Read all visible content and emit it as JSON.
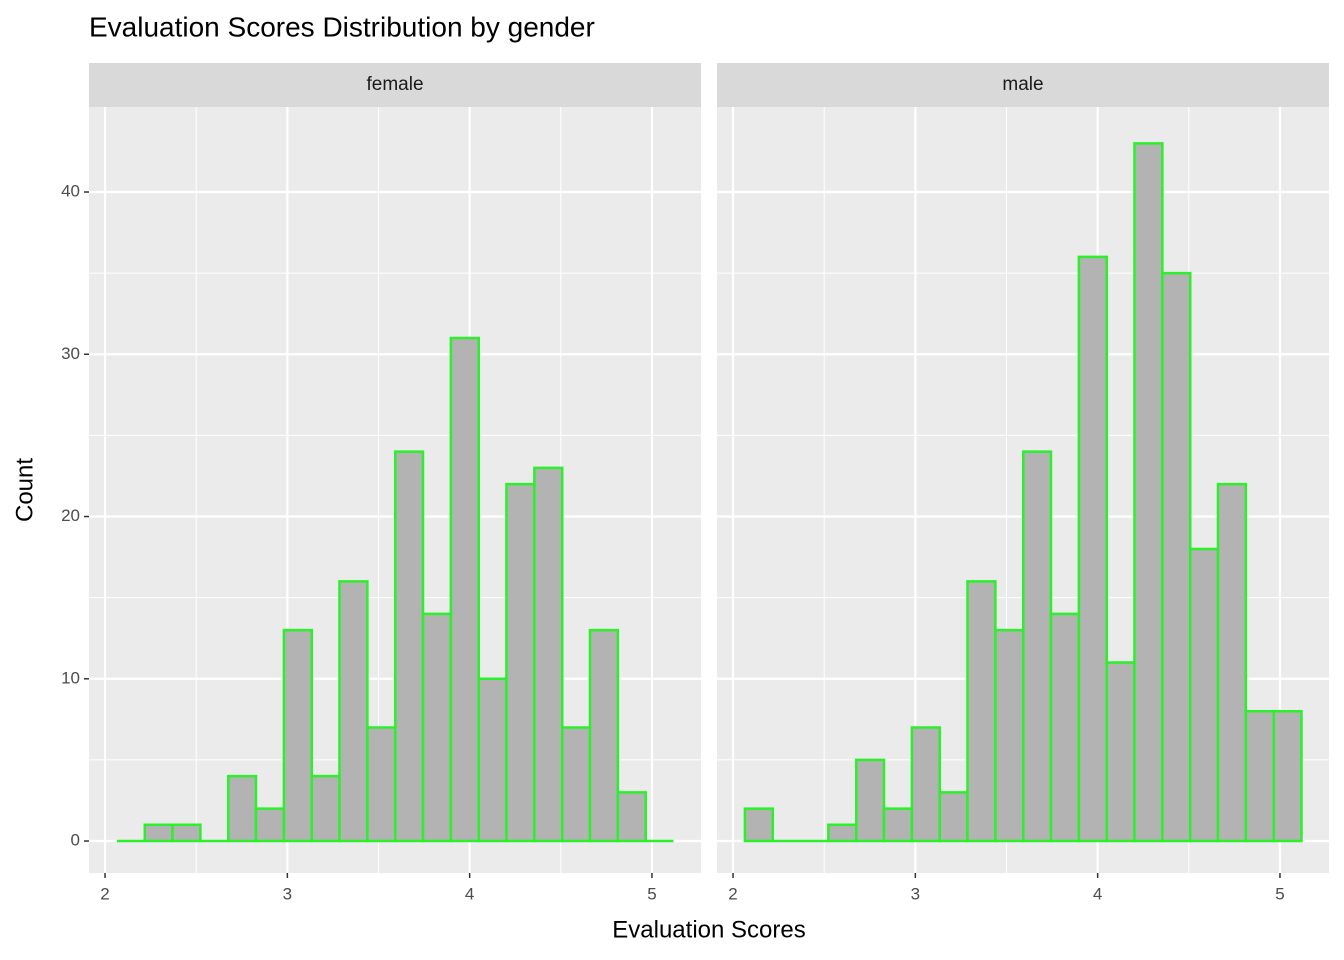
{
  "title": "Evaluation Scores Distribution by gender",
  "x_label": "Evaluation Scores",
  "y_label": "Count",
  "chart_data": [
    {
      "type": "histogram",
      "title": "female",
      "bins": [
        2.065,
        2.218,
        2.37,
        2.523,
        2.676,
        2.828,
        2.981,
        3.134,
        3.286,
        3.439,
        3.592,
        3.744,
        3.897,
        4.05,
        4.202,
        4.355,
        4.508,
        4.66,
        4.813,
        4.966,
        5.118
      ],
      "values": [
        0,
        1,
        1,
        0,
        4,
        2,
        13,
        4,
        16,
        7,
        24,
        14,
        31,
        10,
        22,
        23,
        7,
        13,
        3,
        0
      ],
      "fill": "#b3b3b3",
      "color": "#2bf02b",
      "xlim": [
        1.912,
        5.269
      ],
      "ylim": [
        -1.97,
        45.24
      ],
      "xticks": [
        2,
        3,
        4,
        5
      ],
      "yticks": [
        0,
        10,
        20,
        30,
        40
      ],
      "x_minor_ticks": [
        2.5,
        3.5,
        4.5
      ],
      "y_minor_ticks": [
        5,
        15,
        25,
        35
      ],
      "grid": true
    },
    {
      "type": "histogram",
      "title": "male",
      "bins": [
        2.065,
        2.218,
        2.37,
        2.523,
        2.676,
        2.828,
        2.981,
        3.134,
        3.286,
        3.439,
        3.592,
        3.744,
        3.897,
        4.05,
        4.202,
        4.355,
        4.508,
        4.66,
        4.813,
        4.966,
        5.118
      ],
      "values": [
        2,
        0,
        0,
        1,
        5,
        2,
        7,
        3,
        16,
        13,
        24,
        14,
        36,
        11,
        43,
        35,
        18,
        22,
        8,
        8
      ],
      "fill": "#b3b3b3",
      "color": "#2bf02b",
      "xlim": [
        1.912,
        5.269
      ],
      "ylim": [
        -1.97,
        45.24
      ],
      "xticks": [
        2,
        3,
        4,
        5
      ],
      "yticks": [
        0,
        10,
        20,
        30,
        40
      ],
      "x_minor_ticks": [
        2.5,
        3.5,
        4.5
      ],
      "y_minor_ticks": [
        5,
        15,
        25,
        35
      ],
      "grid": true
    }
  ]
}
